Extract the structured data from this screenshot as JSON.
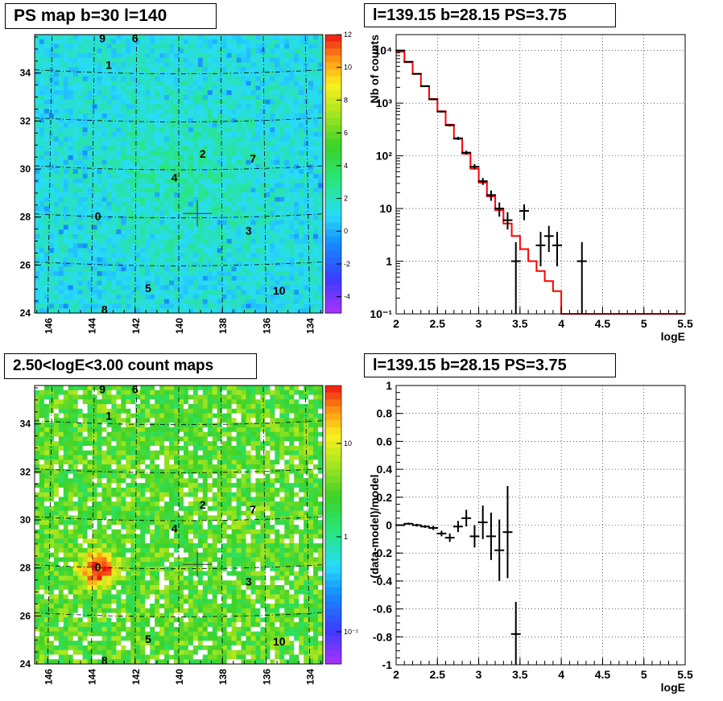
{
  "panels": {
    "ps_map": {
      "title": "PS map b=30 l=140",
      "colorbar_ticks": [
        "12",
        "10",
        "8",
        "6",
        "4",
        "2",
        "0",
        "-2",
        "-4"
      ]
    },
    "spectrum": {
      "title": "l=139.15 b=28.15 PS=3.75"
    },
    "count_map": {
      "title": "2.50<logE<3.00 count maps",
      "colorbar_ticks": [
        "10",
        "1",
        "10⁻¹"
      ]
    },
    "residual": {
      "title": "l=139.15 b=28.15 PS=3.75"
    }
  },
  "map_axes": {
    "x_ticks": [
      "146",
      "144",
      "142",
      "140",
      "138",
      "136",
      "134"
    ],
    "y_ticks": [
      "34",
      "32",
      "30",
      "28",
      "26",
      "24"
    ]
  },
  "sources": [
    {
      "label": "0",
      "l": 143.7,
      "b": 28.0
    },
    {
      "label": "1",
      "l": 143.2,
      "b": 34.3
    },
    {
      "label": "2",
      "l": 138.9,
      "b": 30.6
    },
    {
      "label": "3",
      "l": 136.8,
      "b": 27.4
    },
    {
      "label": "4",
      "l": 140.2,
      "b": 29.6
    },
    {
      "label": "5",
      "l": 141.4,
      "b": 25.0
    },
    {
      "label": "6",
      "l": 142.0,
      "b": 35.4
    },
    {
      "label": "7",
      "l": 136.6,
      "b": 30.4
    },
    {
      "label": "8",
      "l": 143.4,
      "b": 24.1
    },
    {
      "label": "9",
      "l": 143.5,
      "b": 35.4
    },
    {
      "label": "10",
      "l": 135.4,
      "b": 24.9
    }
  ],
  "chart_data": [
    {
      "type": "heatmap",
      "title": "PS map b=30 l=140",
      "xlim": [
        146.6,
        133.4
      ],
      "ylim": [
        24,
        35.6
      ],
      "zlim": [
        -5,
        12
      ],
      "colorbar_ticks": [
        12,
        10,
        8,
        6,
        4,
        2,
        0,
        -2,
        -4
      ],
      "marker": {
        "l": 139.15,
        "b": 28.15
      }
    },
    {
      "type": "line",
      "title": "l=139.15 b=28.15 PS=3.75",
      "xlabel": "logE",
      "ylabel": "Nb of counts",
      "xlim": [
        2,
        5.5
      ],
      "ylim": [
        0.1,
        20000
      ],
      "yscale": "log",
      "grid": true,
      "x_ticks": [
        "2",
        "2.5",
        "3",
        "3.5",
        "4",
        "4.5",
        "5",
        "5.5"
      ],
      "y_ticks": [
        {
          "label": "10⁻¹",
          "value": 0.1
        },
        {
          "label": "1",
          "value": 1
        },
        {
          "label": "10",
          "value": 10
        },
        {
          "label": "10²",
          "value": 100
        },
        {
          "label": "10³",
          "value": 1000
        },
        {
          "label": "10⁴",
          "value": 10000
        }
      ],
      "series": [
        {
          "kind": "model-histogram",
          "color": "#ff0000",
          "x_edges": [
            2.0,
            2.1,
            2.2,
            2.3,
            2.4,
            2.5,
            2.6,
            2.7,
            2.8,
            2.9,
            3.0,
            3.1,
            3.2,
            3.3,
            3.4,
            3.5,
            3.6,
            3.7,
            3.8,
            3.9,
            4.0,
            5.5
          ],
          "values": [
            9500,
            6000,
            3600,
            2100,
            1200,
            700,
            390,
            210,
            110,
            57,
            31,
            17,
            9.3,
            5.2,
            3.0,
            1.7,
            1.0,
            0.65,
            0.42,
            0.27,
            0.1
          ]
        },
        {
          "kind": "data-points",
          "color": "#000000",
          "x": [
            2.05,
            2.15,
            2.25,
            2.35,
            2.45,
            2.55,
            2.65,
            2.75,
            2.85,
            2.95,
            3.05,
            3.15,
            3.25,
            3.35,
            3.45,
            3.55,
            3.75,
            3.85,
            3.95,
            4.25
          ],
          "y": [
            10000,
            6100,
            3600,
            2100,
            1180,
            690,
            380,
            215,
            115,
            62,
            33,
            18,
            10,
            6,
            1,
            9,
            2,
            3,
            2,
            1
          ],
          "y_low": [
            9800,
            6000,
            3540,
            2050,
            1150,
            665,
            360,
            200,
            105,
            55,
            28,
            14,
            7,
            4,
            0.1,
            6,
            0.8,
            1.5,
            0.8,
            0.1
          ],
          "y_high": [
            10200,
            6200,
            3660,
            2150,
            1210,
            715,
            400,
            230,
            125,
            70,
            38,
            22,
            13,
            8.5,
            2.3,
            12,
            3.6,
            4.7,
            3.6,
            2.3
          ]
        }
      ]
    },
    {
      "type": "heatmap",
      "title": "2.50<logE<3.00 count maps",
      "xlim": [
        146.6,
        133.4
      ],
      "ylim": [
        24,
        35.6
      ],
      "zscale": "log",
      "colorbar_ticks": [
        "10",
        "1",
        "10⁻¹"
      ],
      "marker": {
        "l": 139.15,
        "b": 28.15
      }
    },
    {
      "type": "scatter",
      "title": "l=139.15 b=28.15 PS=3.75",
      "xlabel": "logE",
      "ylabel": "(data-model)/model",
      "xlim": [
        2,
        5.5
      ],
      "ylim": [
        -1,
        1
      ],
      "grid": true,
      "x_ticks": [
        "2",
        "2.5",
        "3",
        "3.5",
        "4",
        "4.5",
        "5",
        "5.5"
      ],
      "y_ticks": [
        "1",
        "0.8",
        "0.6",
        "0.4",
        "0.2",
        "0",
        "-0.2",
        "-0.4",
        "-0.6",
        "-0.8",
        "-1"
      ],
      "series": [
        {
          "kind": "data-points",
          "color": "#000000",
          "x": [
            2.05,
            2.15,
            2.25,
            2.35,
            2.45,
            2.55,
            2.65,
            2.75,
            2.85,
            2.95,
            3.05,
            3.15,
            3.25,
            3.35,
            3.45
          ],
          "y": [
            0.0,
            0.01,
            0.0,
            -0.01,
            -0.02,
            -0.06,
            -0.09,
            -0.01,
            0.05,
            -0.08,
            0.02,
            -0.08,
            -0.18,
            -0.05,
            -0.78
          ],
          "err": [
            0.005,
            0.008,
            0.01,
            0.01,
            0.015,
            0.02,
            0.03,
            0.04,
            0.06,
            0.08,
            0.12,
            0.17,
            0.22,
            0.33,
            0.23
          ]
        }
      ]
    }
  ]
}
